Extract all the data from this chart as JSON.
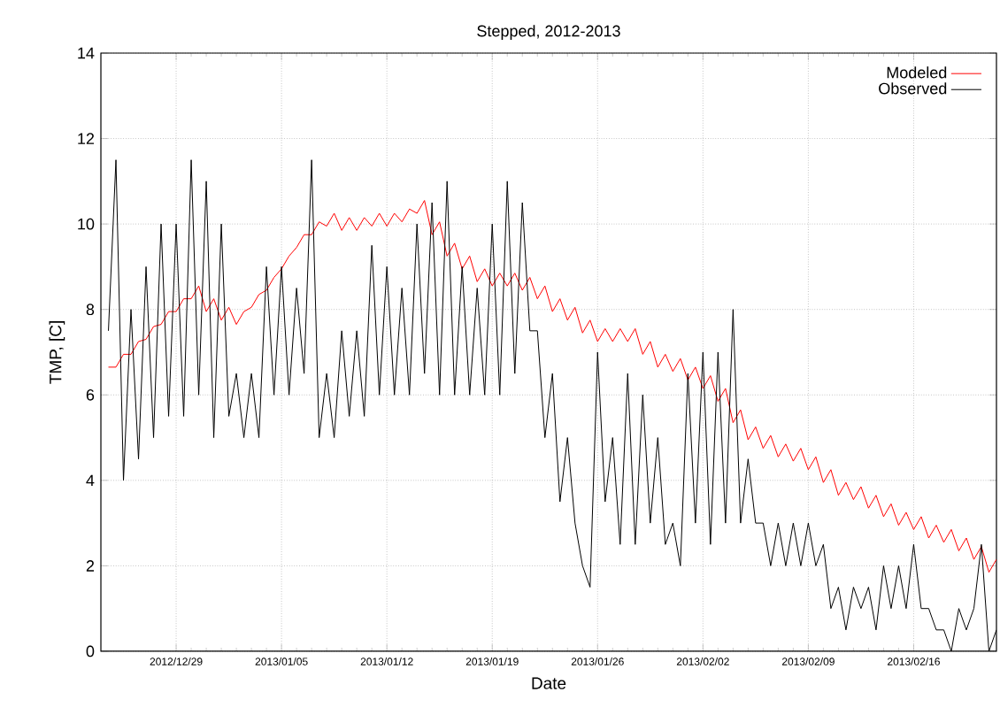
{
  "chart_data": {
    "type": "line",
    "title": "Stepped, 2012-2013",
    "xlabel": "Date",
    "ylabel": "TMP, [C]",
    "x": [
      "2012-12-24T12:00",
      "2012-12-25T00:00",
      "2012-12-25T12:00",
      "2012-12-26T00:00",
      "2012-12-26T12:00",
      "2012-12-27T00:00",
      "2012-12-27T12:00",
      "2012-12-28T00:00",
      "2012-12-28T12:00",
      "2012-12-29T00:00",
      "2012-12-29T12:00",
      "2012-12-30T00:00",
      "2012-12-30T12:00",
      "2012-12-31T00:00",
      "2012-12-31T12:00",
      "2013-01-01T00:00",
      "2013-01-01T12:00",
      "2013-01-02T00:00",
      "2013-01-02T12:00",
      "2013-01-03T00:00",
      "2013-01-03T12:00",
      "2013-01-04T00:00",
      "2013-01-04T12:00",
      "2013-01-05T00:00",
      "2013-01-05T12:00",
      "2013-01-06T00:00",
      "2013-01-06T12:00",
      "2013-01-07T00:00",
      "2013-01-07T12:00",
      "2013-01-08T00:00",
      "2013-01-08T12:00",
      "2013-01-09T00:00",
      "2013-01-09T12:00",
      "2013-01-10T00:00",
      "2013-01-10T12:00",
      "2013-01-11T00:00",
      "2013-01-11T12:00",
      "2013-01-12T00:00",
      "2013-01-12T12:00",
      "2013-01-13T00:00",
      "2013-01-13T12:00",
      "2013-01-14T00:00",
      "2013-01-14T12:00",
      "2013-01-15T00:00",
      "2013-01-15T12:00",
      "2013-01-16T00:00",
      "2013-01-16T12:00",
      "2013-01-17T00:00",
      "2013-01-17T12:00",
      "2013-01-18T00:00",
      "2013-01-18T12:00",
      "2013-01-19T00:00",
      "2013-01-19T12:00",
      "2013-01-20T00:00",
      "2013-01-20T12:00",
      "2013-01-21T00:00",
      "2013-01-21T12:00",
      "2013-01-22T00:00",
      "2013-01-22T12:00",
      "2013-01-23T00:00",
      "2013-01-23T12:00",
      "2013-01-24T00:00",
      "2013-01-24T12:00",
      "2013-01-25T00:00",
      "2013-01-25T12:00",
      "2013-01-26T00:00",
      "2013-01-26T12:00",
      "2013-01-27T00:00",
      "2013-01-27T12:00",
      "2013-01-28T00:00",
      "2013-01-28T12:00",
      "2013-01-29T00:00",
      "2013-01-29T12:00",
      "2013-01-30T00:00",
      "2013-01-30T12:00",
      "2013-01-31T00:00",
      "2013-01-31T12:00",
      "2013-02-01T00:00",
      "2013-02-01T12:00",
      "2013-02-02T00:00",
      "2013-02-02T12:00",
      "2013-02-03T00:00",
      "2013-02-03T12:00",
      "2013-02-04T00:00",
      "2013-02-04T12:00",
      "2013-02-05T00:00",
      "2013-02-05T12:00",
      "2013-02-06T00:00",
      "2013-02-06T12:00",
      "2013-02-07T00:00",
      "2013-02-07T12:00",
      "2013-02-08T00:00",
      "2013-02-08T12:00",
      "2013-02-09T00:00",
      "2013-02-09T12:00",
      "2013-02-10T00:00",
      "2013-02-10T12:00",
      "2013-02-11T00:00",
      "2013-02-11T12:00",
      "2013-02-12T00:00",
      "2013-02-12T12:00",
      "2013-02-13T00:00",
      "2013-02-13T12:00",
      "2013-02-14T00:00",
      "2013-02-14T12:00",
      "2013-02-15T00:00",
      "2013-02-15T12:00",
      "2013-02-16T00:00",
      "2013-02-16T12:00",
      "2013-02-17T00:00",
      "2013-02-17T12:00",
      "2013-02-18T00:00",
      "2013-02-18T12:00",
      "2013-02-19T00:00",
      "2013-02-19T12:00",
      "2013-02-20T00:00",
      "2013-02-20T12:00",
      "2013-02-21T00:00",
      "2013-02-21T12:00"
    ],
    "series": [
      {
        "name": "Modeled",
        "color": "#ff0000",
        "values": [
          6.65,
          6.65,
          6.95,
          6.95,
          7.25,
          7.3,
          7.6,
          7.65,
          7.95,
          7.95,
          8.25,
          8.25,
          8.55,
          7.95,
          8.25,
          7.75,
          8.05,
          7.65,
          7.95,
          8.05,
          8.35,
          8.45,
          8.75,
          8.95,
          9.25,
          9.45,
          9.75,
          9.75,
          10.05,
          9.95,
          10.25,
          9.85,
          10.15,
          9.85,
          10.15,
          9.95,
          10.25,
          9.95,
          10.25,
          10.05,
          10.35,
          10.25,
          10.55,
          9.75,
          10.05,
          9.25,
          9.55,
          8.95,
          9.25,
          8.65,
          8.95,
          8.55,
          8.85,
          8.55,
          8.85,
          8.45,
          8.75,
          8.25,
          8.55,
          7.95,
          8.25,
          7.75,
          8.05,
          7.45,
          7.75,
          7.25,
          7.55,
          7.25,
          7.55,
          7.25,
          7.55,
          6.95,
          7.25,
          6.65,
          6.95,
          6.55,
          6.85,
          6.35,
          6.65,
          6.15,
          6.45,
          5.85,
          6.15,
          5.35,
          5.65,
          4.95,
          5.25,
          4.75,
          5.05,
          4.55,
          4.85,
          4.45,
          4.75,
          4.25,
          4.55,
          3.95,
          4.25,
          3.65,
          3.95,
          3.55,
          3.85,
          3.35,
          3.65,
          3.15,
          3.45,
          2.95,
          3.25,
          2.85,
          3.15,
          2.65,
          2.95,
          2.55,
          2.85,
          2.35,
          2.65,
          2.15,
          2.45,
          1.85,
          2.15
        ]
      },
      {
        "name": "Observed",
        "color": "#000000",
        "values": [
          7.5,
          11.5,
          4.0,
          8.0,
          4.5,
          9.0,
          5.0,
          10.0,
          5.5,
          10.0,
          5.5,
          11.5,
          6.0,
          11.0,
          5.0,
          10.0,
          5.5,
          6.5,
          5.0,
          6.5,
          5.0,
          9.0,
          6.0,
          9.0,
          6.0,
          8.5,
          6.5,
          11.5,
          5.0,
          6.5,
          5.0,
          7.5,
          5.5,
          7.5,
          5.5,
          9.5,
          6.0,
          9.0,
          6.0,
          8.5,
          6.0,
          10.0,
          6.5,
          10.5,
          6.0,
          11.0,
          6.0,
          9.0,
          6.0,
          8.5,
          6.0,
          10.0,
          6.0,
          11.0,
          6.5,
          10.5,
          7.5,
          7.5,
          5.0,
          6.5,
          3.5,
          5.0,
          3.0,
          2.0,
          1.5,
          7.0,
          3.5,
          5.0,
          2.5,
          6.5,
          2.5,
          6.0,
          3.0,
          5.0,
          2.5,
          3.0,
          2.0,
          6.5,
          3.0,
          7.0,
          2.5,
          7.0,
          3.0,
          8.0,
          3.0,
          4.5,
          3.0,
          3.0,
          2.0,
          3.0,
          2.0,
          3.0,
          2.0,
          3.0,
          2.0,
          2.5,
          1.0,
          1.5,
          0.5,
          1.5,
          1.0,
          1.5,
          0.5,
          2.0,
          1.0,
          2.0,
          1.0,
          2.5,
          1.0,
          1.0,
          0.5,
          0.5,
          0.0,
          1.0,
          0.5,
          1.0,
          2.5,
          0.0,
          0.5
        ]
      }
    ],
    "xlim": [
      "2012-12-24",
      "2013-02-21T12:00"
    ],
    "xticks": [
      {
        "value": "2012-12-29",
        "label": "2012/12/29"
      },
      {
        "value": "2013-01-05",
        "label": "2013/01/05"
      },
      {
        "value": "2013-01-12",
        "label": "2013/01/12"
      },
      {
        "value": "2013-01-19",
        "label": "2013/01/19"
      },
      {
        "value": "2013-01-26",
        "label": "2013/01/26"
      },
      {
        "value": "2013-02-02",
        "label": "2013/02/02"
      },
      {
        "value": "2013-02-09",
        "label": "2013/02/09"
      },
      {
        "value": "2013-02-16",
        "label": "2013/02/16"
      }
    ],
    "ylim": [
      0,
      14
    ],
    "yticks": [
      0,
      2,
      4,
      6,
      8,
      10,
      12,
      14
    ],
    "grid": true,
    "legend": "top right",
    "marker": "none",
    "line_style": "solid"
  }
}
